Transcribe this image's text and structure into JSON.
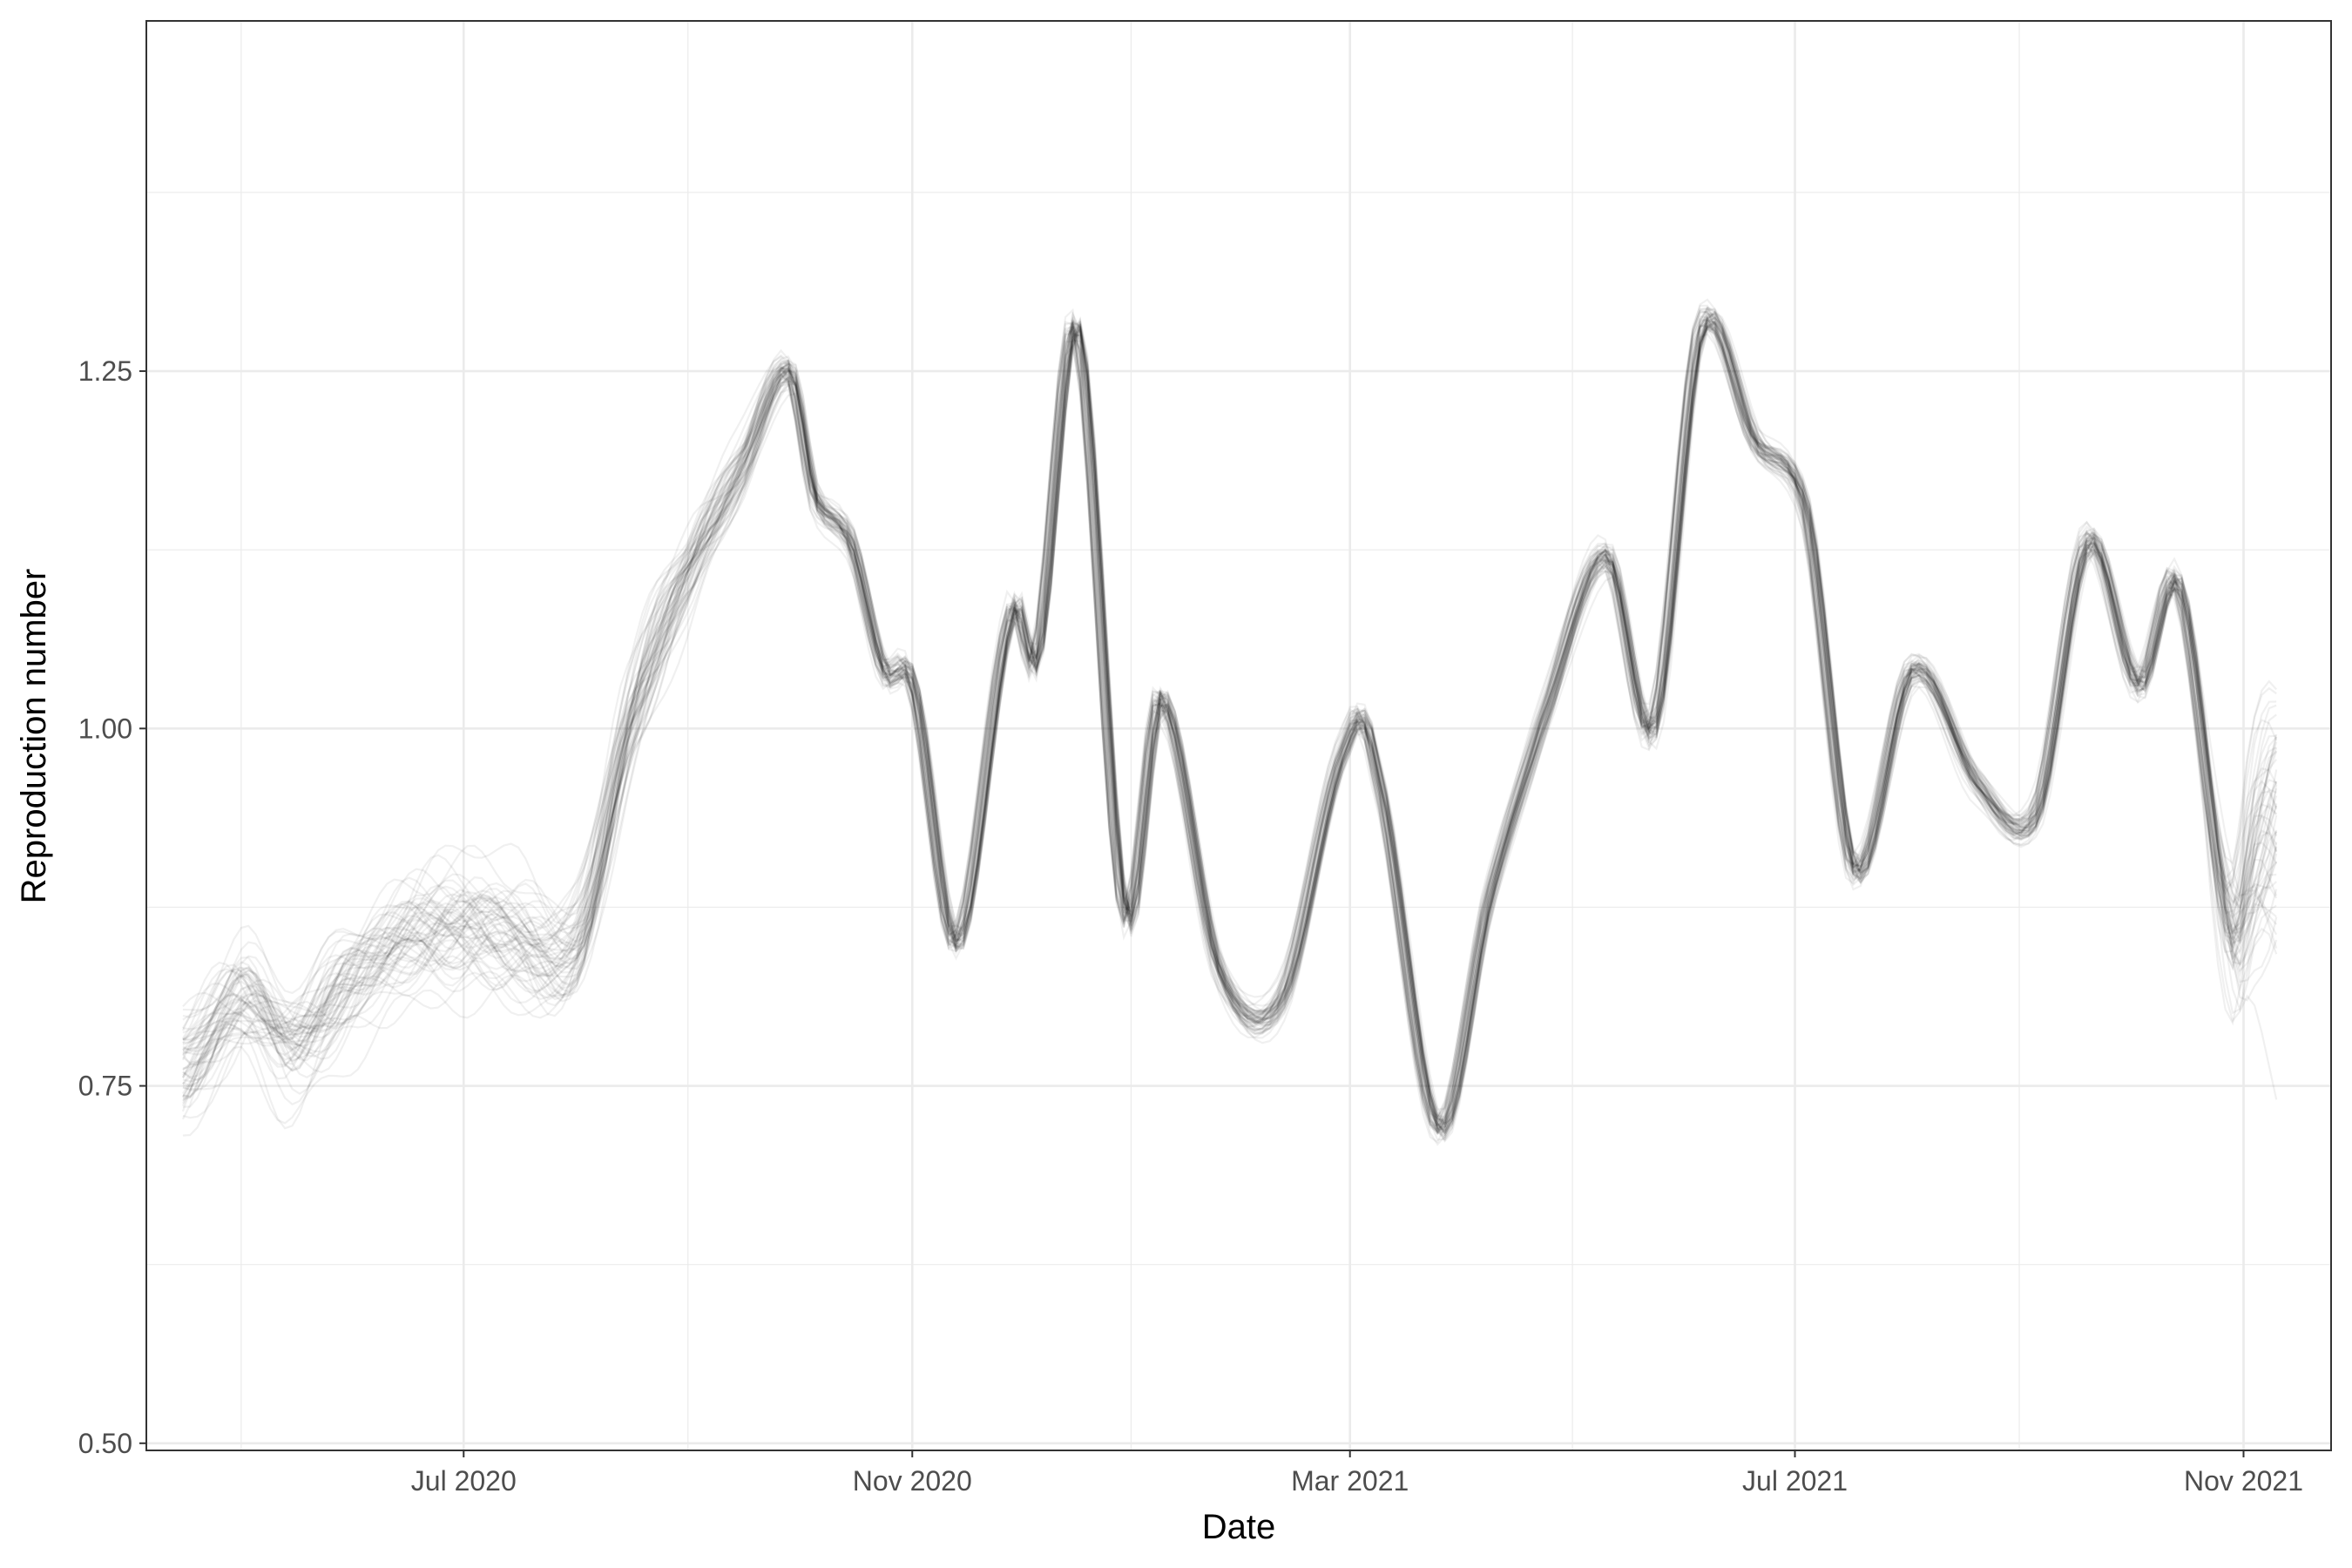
{
  "chart_data": {
    "type": "line",
    "title": "",
    "xlabel": "Date",
    "ylabel": "Reproduction number",
    "x_ticks": [
      {
        "date": "2020-07-01",
        "label": "Jul 2020"
      },
      {
        "date": "2020-11-01",
        "label": "Nov 2020"
      },
      {
        "date": "2021-03-01",
        "label": "Mar 2021"
      },
      {
        "date": "2021-07-01",
        "label": "Jul 2021"
      },
      {
        "date": "2021-11-01",
        "label": "Nov 2021"
      }
    ],
    "y_ticks": [
      {
        "value": 0.5,
        "label": "0.50"
      },
      {
        "value": 0.75,
        "label": "0.75"
      },
      {
        "value": 1.0,
        "label": "1.00"
      },
      {
        "value": 1.25,
        "label": "1.25"
      }
    ],
    "xlim": [
      "2020-04-05",
      "2021-11-25"
    ],
    "ylim": [
      0.495,
      1.495
    ],
    "grid": true,
    "series_color": "#000000",
    "series_opacity": 0.06,
    "series_count": 60,
    "central_estimate": {
      "x": [
        "2020-04-15",
        "2020-05-01",
        "2020-05-15",
        "2020-06-01",
        "2020-06-15",
        "2020-07-01",
        "2020-07-15",
        "2020-08-01",
        "2020-08-15",
        "2020-09-01",
        "2020-09-15",
        "2020-09-28",
        "2020-10-05",
        "2020-10-15",
        "2020-10-24",
        "2020-11-01",
        "2020-11-13",
        "2020-11-28",
        "2020-12-05",
        "2020-12-16",
        "2020-12-29",
        "2021-01-08",
        "2021-01-24",
        "2021-02-10",
        "2021-02-28",
        "2021-03-08",
        "2021-03-25",
        "2021-04-08",
        "2021-04-22",
        "2021-05-10",
        "2021-05-23",
        "2021-06-05",
        "2021-06-20",
        "2021-07-04",
        "2021-07-17",
        "2021-08-02",
        "2021-08-20",
        "2021-09-05",
        "2021-09-19",
        "2021-10-03",
        "2021-10-14",
        "2021-10-28",
        "2021-11-04",
        "2021-11-10"
      ],
      "y": [
        0.76,
        0.81,
        0.78,
        0.82,
        0.85,
        0.86,
        0.85,
        0.85,
        1.0,
        1.11,
        1.18,
        1.25,
        1.16,
        1.13,
        1.04,
        1.03,
        0.85,
        1.08,
        1.05,
        1.28,
        0.87,
        1.02,
        0.83,
        0.81,
        0.99,
        0.97,
        0.72,
        0.88,
        1.0,
        1.12,
        1.0,
        1.28,
        1.2,
        1.15,
        0.9,
        1.04,
        0.96,
        0.94,
        1.13,
        1.03,
        1.1,
        0.86,
        0.9,
        0.92
      ]
    }
  }
}
